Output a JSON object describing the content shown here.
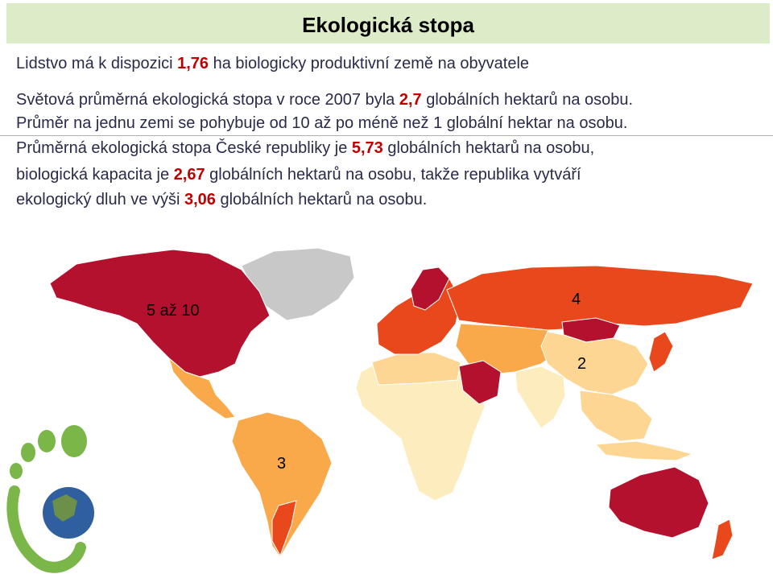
{
  "title": "Ekologická stopa",
  "line1": {
    "a": "Lidstvo má k dispozici ",
    "v": "1,76",
    "b": " ha biologicky produktivní země na obyvatele"
  },
  "line2": {
    "a": "Světová průměrná ekologická stopa v roce 2007 byla ",
    "v": "2,7",
    "b": " globálních hektarů na osobu."
  },
  "line3": "Průměr na jednu zemi se pohybuje od 10 až po méně než 1 globální hektar na osobu.",
  "line4": {
    "a": "Průměrná ekologická stopa České republiky je ",
    "v": "5,73",
    "b": " globálních hektarů na osobu,"
  },
  "line5": {
    "a": "biologická kapacita je ",
    "v": "2,67",
    "b": " globálních hektarů na osobu, takže republika vytváří"
  },
  "line6": {
    "a": "ekologický dluh ve výši ",
    "v": "3,06",
    "b": " globálních hektarů na osobu."
  },
  "map": {
    "labels": {
      "north_america": "5 až 10",
      "russia": "4",
      "china": "2",
      "south_america": "3"
    },
    "colors": {
      "very_high": "#b3112e",
      "high": "#e8481b",
      "mid_high": "#f47a2a",
      "mid": "#f9a84a",
      "low": "#fcd692",
      "very_low": "#fdecbd",
      "no_data": "#c8c8c8",
      "logo_green": "#7ab648"
    },
    "icons": [
      "footprint-logo-icon",
      "earth-globe-icon"
    ]
  }
}
